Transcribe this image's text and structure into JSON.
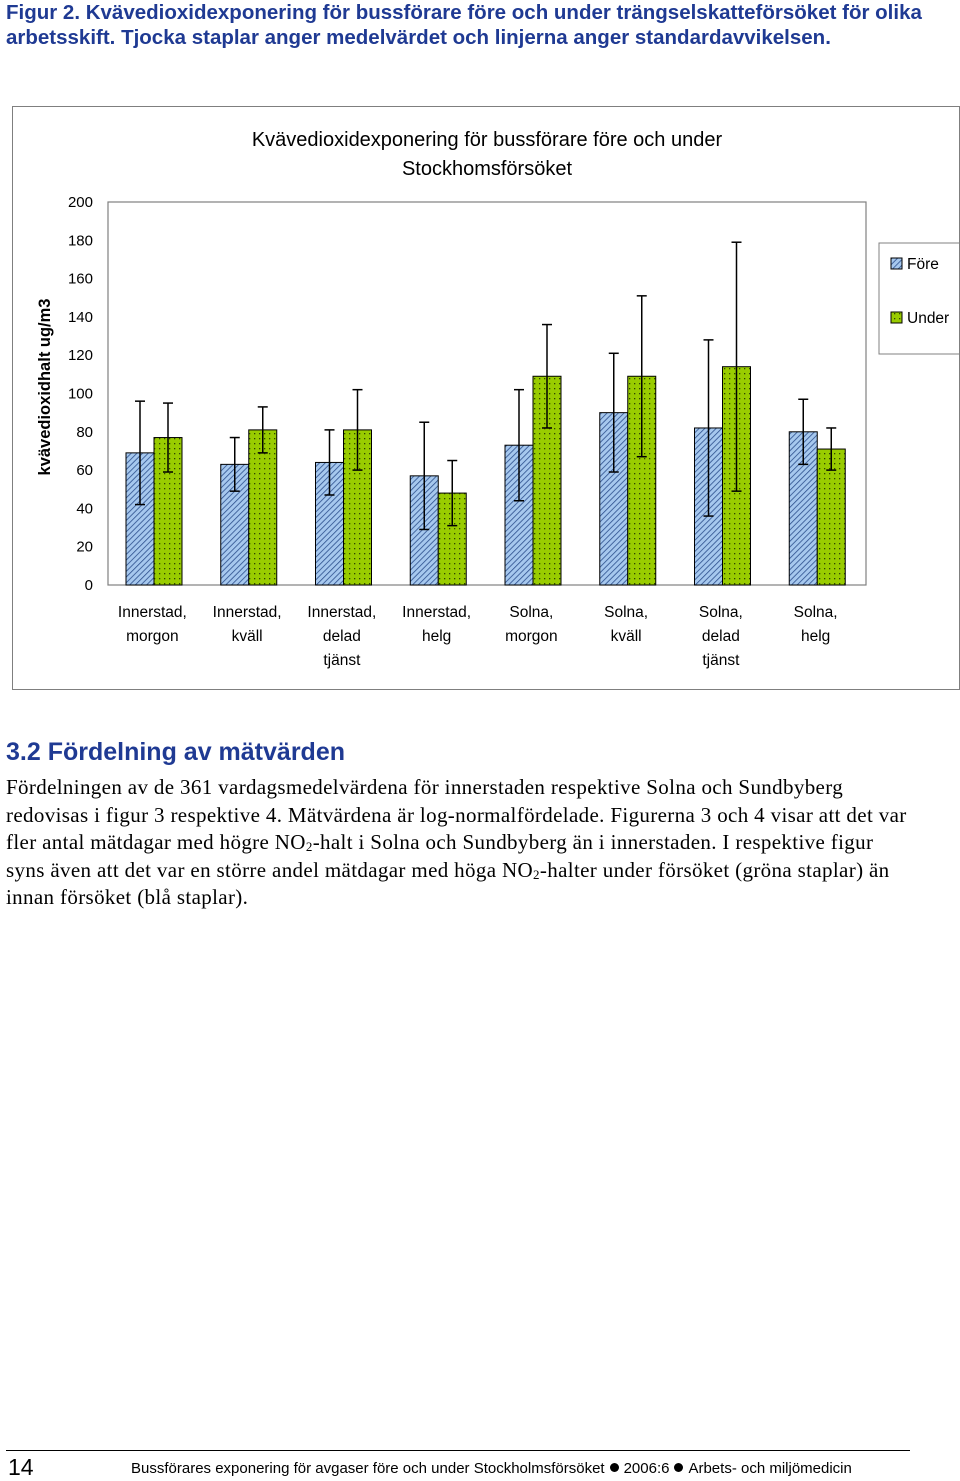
{
  "caption": "Figur 2. Kvävedioxidexponering för bussförare före och under trängselskatteförsöket för olika arbetsskift. Tjocka staplar anger medelvärdet och linjerna anger standardavvikelsen.",
  "chart_data": {
    "type": "bar",
    "title_line1": "Kvävedioxidexponering för bussförare före och under",
    "title_line2": "Stockhomsförsöket",
    "ylabel": "kvävedioxidhalt ug/m3",
    "xlabel": "",
    "ylim": [
      0,
      200
    ],
    "yticks": [
      "0",
      "20",
      "40",
      "60",
      "80",
      "100",
      "120",
      "140",
      "160",
      "180",
      "200"
    ],
    "categories": [
      [
        "Innerstad,",
        "morgon"
      ],
      [
        "Innerstad,",
        "kväll"
      ],
      [
        "Innerstad,",
        "delad",
        "tjänst"
      ],
      [
        "Innerstad,",
        "helg"
      ],
      [
        "Solna,",
        "morgon"
      ],
      [
        "Solna,",
        "kväll"
      ],
      [
        "Solna,",
        "delad",
        "tjänst"
      ],
      [
        "Solna,",
        "helg"
      ]
    ],
    "series": [
      {
        "name": "Före",
        "color": "#a6c8ee",
        "pattern": "diagonal-hatch",
        "values": [
          69,
          63,
          64,
          57,
          73,
          90,
          82,
          80
        ],
        "std_dev": [
          27,
          14,
          17,
          28,
          29,
          31,
          46,
          17
        ]
      },
      {
        "name": "Under",
        "color": "#99cc00",
        "pattern": "dots",
        "values": [
          77,
          81,
          81,
          48,
          109,
          109,
          114,
          71
        ],
        "std_dev": [
          18,
          12,
          21,
          17,
          27,
          42,
          65,
          11
        ]
      }
    ],
    "legend_position": "right",
    "grid": false
  },
  "section": {
    "heading": "3.2 Fördelning av mätvärden",
    "paragraph_parts": [
      "Fördelningen av de 361 vardagsmedelvärdena för innerstaden respektive Solna och Sundbyberg redovisas i figur 3 respektive 4. Mätvärdena är log-normalfördelade. Figurerna 3 och 4 visar att det var fler antal mätdagar med högre NO",
      "2",
      "-halt i Solna och Sundbyberg än i innerstaden. I respektive figur syns även att det var en större andel mätdagar med höga NO",
      "2",
      "-halter under försöket (gröna staplar) än innan försöket (blå staplar)."
    ]
  },
  "footer": {
    "page_number": "14",
    "text_1": "Bussförares exponering för avgaser före och under Stockholmsförsöket",
    "text_2": "2006:6",
    "text_3": "Arbets- och miljömedicin"
  }
}
